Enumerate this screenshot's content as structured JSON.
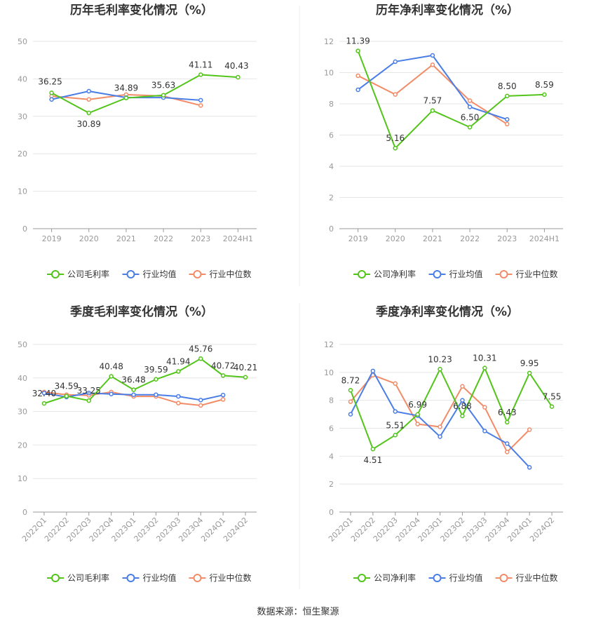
{
  "source": "数据来源：恒生聚源",
  "legend_colors": {
    "company": "#52c41a",
    "avg": "#4a7ee6",
    "median": "#f28c68"
  },
  "chart_data": [
    {
      "type": "line",
      "title": "历年毛利率变化情况（%）",
      "categories": [
        "2019",
        "2020",
        "2021",
        "2022",
        "2023",
        "2024H1"
      ],
      "ylim": [
        0,
        50
      ],
      "yticks": [
        0,
        10,
        20,
        30,
        40,
        50
      ],
      "grid": true,
      "legend_position": "bottom",
      "series": [
        {
          "name": "公司毛利率",
          "color": "#52c41a",
          "labeled": true,
          "values": [
            36.25,
            30.89,
            34.89,
            35.63,
            41.11,
            40.43
          ],
          "labels": [
            "36.25",
            "30.89",
            "34.89",
            "35.63",
            "41.11",
            "40.43"
          ]
        },
        {
          "name": "行业均值",
          "color": "#4a7ee6",
          "values": [
            34.5,
            36.7,
            35.0,
            35.0,
            34.3,
            null
          ]
        },
        {
          "name": "行业中位数",
          "color": "#f28c68",
          "values": [
            35.4,
            34.5,
            35.8,
            35.4,
            32.9,
            null
          ]
        }
      ]
    },
    {
      "type": "line",
      "title": "历年净利率变化情况（%）",
      "categories": [
        "2019",
        "2020",
        "2021",
        "2022",
        "2023",
        "2024H1"
      ],
      "ylim": [
        0,
        12
      ],
      "yticks": [
        0,
        2,
        4,
        6,
        8,
        10,
        12
      ],
      "grid": true,
      "legend_position": "bottom",
      "series": [
        {
          "name": "公司净利率",
          "color": "#52c41a",
          "labeled": true,
          "values": [
            11.39,
            5.16,
            7.57,
            6.5,
            8.5,
            8.59
          ],
          "labels": [
            "11.39",
            "5.16",
            "7.57",
            "6.50",
            "8.50",
            "8.59"
          ]
        },
        {
          "name": "行业均值",
          "color": "#4a7ee6",
          "values": [
            8.9,
            10.7,
            11.1,
            7.8,
            7.0,
            null
          ]
        },
        {
          "name": "行业中位数",
          "color": "#f28c68",
          "values": [
            9.8,
            8.6,
            10.5,
            8.2,
            6.7,
            null
          ]
        }
      ]
    },
    {
      "type": "line",
      "title": "季度毛利率变化情况（%）",
      "categories": [
        "2022Q1",
        "2022Q2",
        "2022Q3",
        "2022Q4",
        "2023Q1",
        "2023Q2",
        "2023Q3",
        "2023Q4",
        "2024Q1",
        "2024Q2"
      ],
      "ylim": [
        0,
        50
      ],
      "yticks": [
        0,
        10,
        20,
        30,
        40,
        50
      ],
      "grid": true,
      "legend_position": "bottom",
      "series": [
        {
          "name": "公司毛利率",
          "color": "#52c41a",
          "labeled": true,
          "values": [
            32.4,
            34.59,
            33.25,
            40.48,
            36.48,
            39.59,
            41.94,
            45.76,
            40.72,
            40.21
          ],
          "labels": [
            "32.40",
            "34.59",
            "33.25",
            "40.48",
            "36.48",
            "39.59",
            "41.94",
            "45.76",
            "40.72",
            "40.21"
          ]
        },
        {
          "name": "行业均值",
          "color": "#4a7ee6",
          "values": [
            35.5,
            34.3,
            35.5,
            35.2,
            35.0,
            35.0,
            34.5,
            33.4,
            34.9,
            null
          ]
        },
        {
          "name": "行业中位数",
          "color": "#f28c68",
          "values": [
            35.8,
            35.0,
            34.8,
            35.8,
            34.5,
            34.5,
            32.5,
            31.8,
            33.6,
            null
          ]
        }
      ]
    },
    {
      "type": "line",
      "title": "季度净利率变化情况（%）",
      "categories": [
        "2022Q1",
        "2022Q2",
        "2022Q3",
        "2022Q4",
        "2023Q1",
        "2023Q2",
        "2023Q3",
        "2023Q4",
        "2024Q1",
        "2024Q2"
      ],
      "ylim": [
        0,
        12
      ],
      "yticks": [
        0,
        2,
        4,
        6,
        8,
        10,
        12
      ],
      "grid": true,
      "legend_position": "bottom",
      "series": [
        {
          "name": "公司净利率",
          "color": "#52c41a",
          "labeled": true,
          "values": [
            8.72,
            4.51,
            5.51,
            6.99,
            10.23,
            6.88,
            10.31,
            6.43,
            9.95,
            7.55
          ],
          "labels": [
            "8.72",
            "4.51",
            "5.51",
            "6.99",
            "10.23",
            "6.88",
            "10.31",
            "6.43",
            "9.95",
            "7.55"
          ]
        },
        {
          "name": "行业均值",
          "color": "#4a7ee6",
          "values": [
            7.0,
            10.1,
            7.2,
            6.9,
            5.4,
            8.0,
            5.8,
            4.9,
            3.2,
            null
          ]
        },
        {
          "name": "行业中位数",
          "color": "#f28c68",
          "values": [
            7.9,
            9.8,
            9.2,
            6.3,
            6.1,
            9.0,
            7.5,
            4.3,
            5.9,
            null
          ]
        }
      ]
    }
  ]
}
